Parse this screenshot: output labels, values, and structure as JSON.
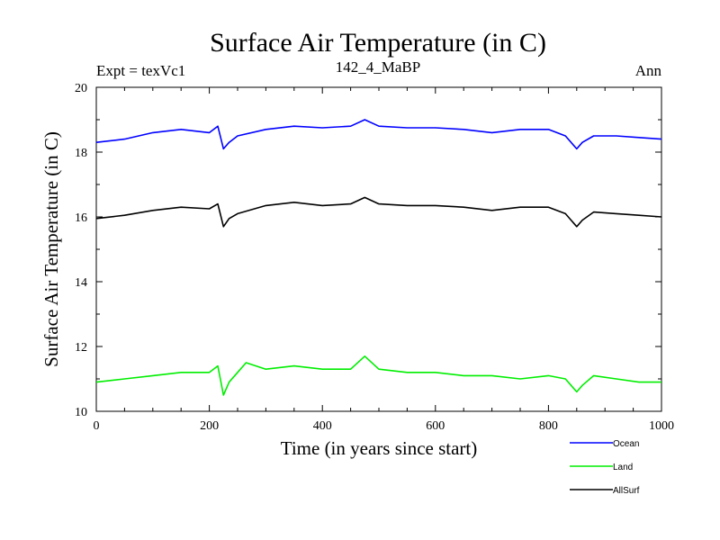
{
  "header": {
    "expt": "Expt = texVc1",
    "run": "142_4_MaBP",
    "period": "Ann"
  },
  "chart_data": {
    "type": "line",
    "title": "Surface Air Temperature (in C)",
    "xlabel": "Time (in years since start)",
    "ylabel": "Surface Air Temperature (in C)",
    "xlim": [
      0,
      1000
    ],
    "ylim": [
      10,
      20
    ],
    "xticks": [
      0,
      200,
      400,
      600,
      800,
      1000
    ],
    "yticks": [
      10,
      12,
      14,
      16,
      18,
      20
    ],
    "grid": false,
    "legend_position": "bottom-right outside",
    "series": [
      {
        "name": "Ocean",
        "color": "#0000ff",
        "x": [
          0,
          50,
          100,
          150,
          200,
          215,
          225,
          235,
          250,
          300,
          350,
          400,
          450,
          475,
          500,
          550,
          600,
          650,
          700,
          750,
          800,
          830,
          850,
          860,
          880,
          920,
          960,
          1000
        ],
        "values": [
          18.3,
          18.4,
          18.6,
          18.7,
          18.6,
          18.8,
          18.1,
          18.3,
          18.5,
          18.7,
          18.8,
          18.75,
          18.8,
          19.0,
          18.8,
          18.75,
          18.75,
          18.7,
          18.6,
          18.7,
          18.7,
          18.5,
          18.1,
          18.3,
          18.5,
          18.5,
          18.45,
          18.4
        ]
      },
      {
        "name": "Land",
        "color": "#00ee00",
        "x": [
          0,
          50,
          100,
          150,
          200,
          215,
          225,
          235,
          250,
          265,
          300,
          350,
          400,
          450,
          475,
          500,
          550,
          600,
          650,
          700,
          750,
          800,
          830,
          850,
          860,
          880,
          920,
          960,
          1000
        ],
        "values": [
          10.9,
          11.0,
          11.1,
          11.2,
          11.2,
          11.4,
          10.5,
          10.9,
          11.2,
          11.5,
          11.3,
          11.4,
          11.3,
          11.3,
          11.7,
          11.3,
          11.2,
          11.2,
          11.1,
          11.1,
          11.0,
          11.1,
          11.0,
          10.6,
          10.8,
          11.1,
          11.0,
          10.9,
          10.9
        ]
      },
      {
        "name": "AllSurf",
        "color": "#000000",
        "x": [
          0,
          50,
          100,
          150,
          200,
          215,
          225,
          235,
          250,
          300,
          350,
          400,
          450,
          475,
          500,
          550,
          600,
          650,
          700,
          750,
          800,
          830,
          850,
          860,
          880,
          920,
          960,
          1000
        ],
        "values": [
          15.95,
          16.05,
          16.2,
          16.3,
          16.25,
          16.4,
          15.7,
          15.95,
          16.1,
          16.35,
          16.45,
          16.35,
          16.4,
          16.6,
          16.4,
          16.35,
          16.35,
          16.3,
          16.2,
          16.3,
          16.3,
          16.1,
          15.7,
          15.9,
          16.15,
          16.1,
          16.05,
          16.0
        ]
      }
    ]
  }
}
